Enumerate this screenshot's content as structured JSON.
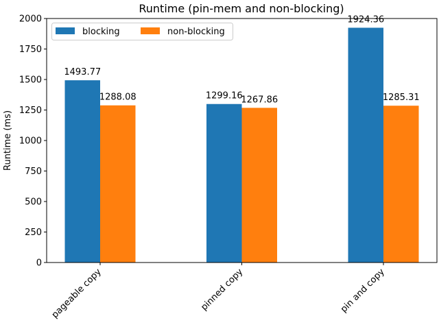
{
  "chart_data": {
    "type": "bar",
    "title": "Runtime (pin-mem and non-blocking)",
    "xlabel": "",
    "ylabel": "Runtime (ms)",
    "categories": [
      "pageable copy",
      "pinned copy",
      "pin and copy"
    ],
    "series": [
      {
        "name": "blocking",
        "color": "#1f77b4",
        "values": [
          1493.77,
          1299.16,
          1924.36
        ],
        "labels": [
          "1493.77",
          "1299.16",
          "1924.36"
        ]
      },
      {
        "name": "non-blocking",
        "color": "#ff7f0e",
        "values": [
          1288.08,
          1267.86,
          1285.31
        ],
        "labels": [
          "1288.08",
          "1267.86",
          "1285.31"
        ]
      }
    ],
    "ylim": [
      0,
      2000
    ],
    "yticks": [
      0,
      250,
      500,
      750,
      1000,
      1250,
      1500,
      1750,
      2000
    ],
    "ytick_labels": [
      "0",
      "250",
      "500",
      "750",
      "1000",
      "1250",
      "1500",
      "1750",
      "2000"
    ],
    "grid": false,
    "legend": "top-left"
  }
}
